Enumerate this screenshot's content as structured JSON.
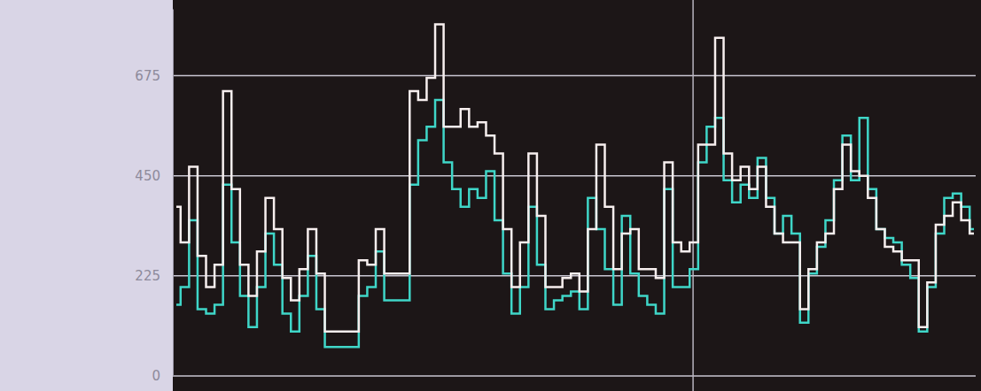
{
  "chart_data": {
    "type": "line",
    "categories": [
      null,
      null,
      null,
      null,
      null,
      null,
      null,
      null,
      null,
      null,
      null,
      null,
      null,
      null,
      null,
      null,
      null,
      null,
      null,
      null,
      null,
      null,
      null,
      null,
      null,
      null,
      null,
      null,
      null,
      null,
      null,
      null,
      null,
      null,
      null,
      null,
      null,
      null,
      null,
      null,
      null,
      null,
      null,
      null,
      null,
      null,
      null,
      null,
      null,
      null,
      null,
      null,
      null,
      null,
      null,
      null,
      null,
      null,
      null,
      null,
      null,
      null,
      null,
      null,
      null,
      null,
      null,
      null,
      null,
      null,
      null,
      null,
      null,
      null,
      null,
      null,
      null,
      null,
      null,
      null,
      null,
      null,
      null,
      null,
      null,
      null,
      null,
      null,
      null,
      null,
      null,
      null,
      null,
      null,
      null
    ],
    "series": [
      {
        "color": "#3fd6c8",
        "values": [
          160,
          200,
          350,
          150,
          140,
          160,
          430,
          300,
          180,
          110,
          200,
          320,
          250,
          140,
          100,
          180,
          270,
          150,
          65,
          65,
          65,
          65,
          180,
          200,
          280,
          170,
          170,
          170,
          430,
          530,
          560,
          620,
          480,
          420,
          380,
          420,
          400,
          460,
          350,
          230,
          140,
          200,
          380,
          250,
          150,
          170,
          180,
          190,
          150,
          400,
          330,
          240,
          160,
          360,
          230,
          180,
          160,
          140,
          420,
          200,
          200,
          240,
          480,
          560,
          580,
          440,
          390,
          430,
          400,
          490,
          400,
          320,
          360,
          320,
          120,
          230,
          290,
          350,
          440,
          540,
          440,
          580,
          420,
          330,
          310,
          300,
          250,
          220,
          100,
          200,
          320,
          400,
          410,
          380,
          330
        ]
      },
      {
        "color": "#f6eeee",
        "values": [
          380,
          300,
          470,
          270,
          200,
          250,
          640,
          420,
          250,
          180,
          280,
          400,
          330,
          220,
          170,
          240,
          330,
          230,
          100,
          100,
          100,
          100,
          260,
          250,
          330,
          230,
          230,
          230,
          640,
          620,
          670,
          790,
          560,
          560,
          600,
          560,
          570,
          540,
          500,
          330,
          200,
          300,
          500,
          360,
          200,
          200,
          220,
          230,
          190,
          330,
          520,
          380,
          240,
          320,
          330,
          240,
          240,
          220,
          480,
          300,
          280,
          300,
          520,
          520,
          760,
          500,
          440,
          470,
          420,
          470,
          380,
          320,
          300,
          300,
          150,
          240,
          300,
          320,
          420,
          520,
          460,
          450,
          400,
          330,
          290,
          280,
          260,
          260,
          110,
          210,
          340,
          360,
          390,
          350,
          320
        ]
      }
    ],
    "ylim": [
      0,
      825
    ],
    "yticks": [
      0,
      225,
      450,
      675
    ],
    "grid": true,
    "tick_labels": "y"
  }
}
